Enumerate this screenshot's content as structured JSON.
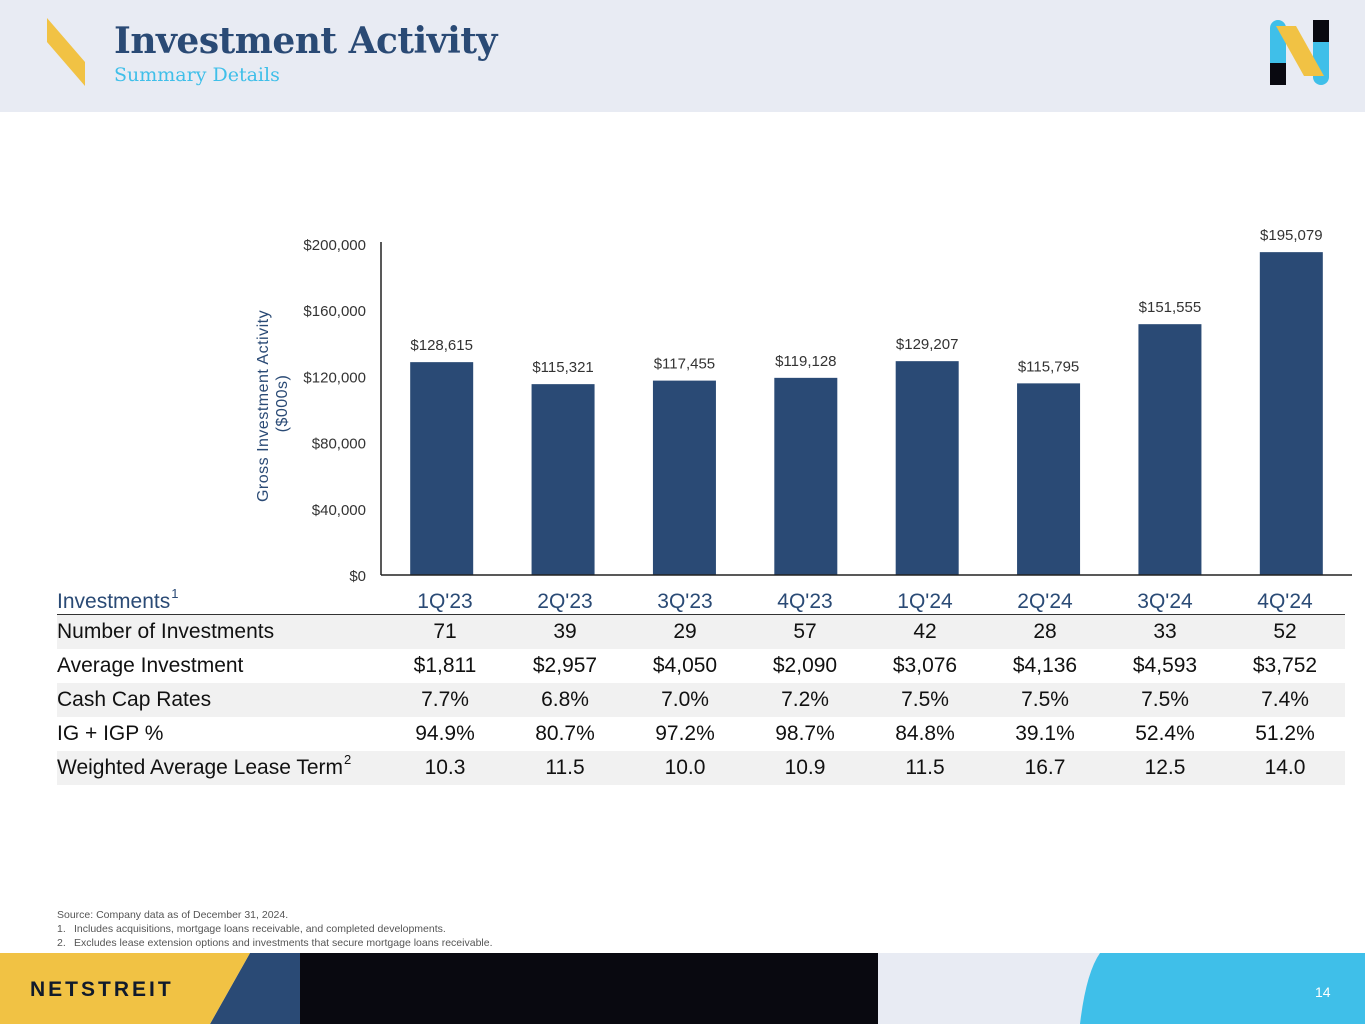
{
  "header": {
    "title": "Investment Activity",
    "subtitle": "Summary Details"
  },
  "chart_data": {
    "type": "bar",
    "categories": [
      "1Q'23",
      "2Q'23",
      "3Q'23",
      "4Q'23",
      "1Q'24",
      "2Q'24",
      "3Q'24",
      "4Q'24"
    ],
    "values": [
      128615,
      115321,
      117455,
      119128,
      129207,
      115795,
      151555,
      195079
    ],
    "value_labels": [
      "$128,615",
      "$115,321",
      "$117,455",
      "$119,128",
      "$129,207",
      "$115,795",
      "$151,555",
      "$195,079"
    ],
    "ylabel_line1": "Gross Investment Activity",
    "ylabel_line2": "($000s)",
    "ylim": [
      0,
      200000
    ],
    "yticks": [
      0,
      40000,
      80000,
      120000,
      160000,
      200000
    ],
    "ytick_labels": [
      "$0",
      "$40,000",
      "$80,000",
      "$120,000",
      "$160,000",
      "$200,000"
    ],
    "bar_color": "#2a4a75",
    "grid": false
  },
  "table": {
    "header_label": "Investments",
    "header_sup": "1",
    "columns": [
      "1Q'23",
      "2Q'23",
      "3Q'23",
      "4Q'23",
      "1Q'24",
      "2Q'24",
      "3Q'24",
      "4Q'24"
    ],
    "rows": [
      {
        "label": "Number of Investments",
        "sup": "",
        "values": [
          "71",
          "39",
          "29",
          "57",
          "42",
          "28",
          "33",
          "52"
        ]
      },
      {
        "label": "Average Investment",
        "sup": "",
        "values": [
          "$1,811",
          "$2,957",
          "$4,050",
          "$2,090",
          "$3,076",
          "$4,136",
          "$4,593",
          "$3,752"
        ]
      },
      {
        "label": "Cash Cap Rates",
        "sup": "",
        "values": [
          "7.7%",
          "6.8%",
          "7.0%",
          "7.2%",
          "7.5%",
          "7.5%",
          "7.5%",
          "7.4%"
        ]
      },
      {
        "label": "IG + IGP %",
        "sup": "",
        "values": [
          "94.9%",
          "80.7%",
          "97.2%",
          "98.7%",
          "84.8%",
          "39.1%",
          "52.4%",
          "51.2%"
        ]
      },
      {
        "label": "Weighted Average Lease Term",
        "sup": "2",
        "values": [
          "10.3",
          "11.5",
          "10.0",
          "10.9",
          "11.5",
          "16.7",
          "12.5",
          "14.0"
        ]
      }
    ]
  },
  "notes": {
    "source": "Source: Company data as of December 31, 2024.",
    "footnotes": [
      {
        "num": "1.",
        "text": "Includes acquisitions, mortgage loans receivable, and completed developments."
      },
      {
        "num": "2.",
        "text": "Excludes lease extension options and investments that secure mortgage loans receivable."
      }
    ]
  },
  "footer": {
    "brand": "NETSTREIT",
    "page_number": "14"
  },
  "colors": {
    "navy": "#2a4a75",
    "sky": "#3fbfe9",
    "gold": "#f1c244",
    "header_bg": "#e8ebf3",
    "black": "#090910"
  }
}
